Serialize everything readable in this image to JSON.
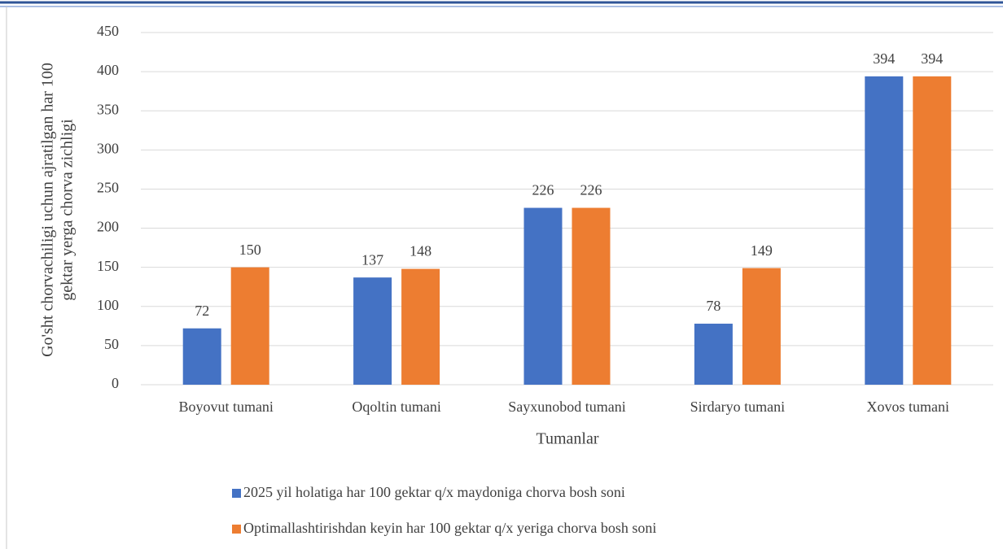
{
  "chart_data": {
    "type": "bar",
    "categories": [
      "Boyovut tumani",
      "Oqoltin tumani",
      "Sayxunobod tumani",
      "Sirdaryo tumani",
      "Xovos tumani"
    ],
    "series": [
      {
        "name": "2025 yil holatiga har 100 gektar q/x maydoniga chorva bosh soni",
        "color": "#4472c4",
        "values": [
          72,
          137,
          226,
          78,
          394
        ]
      },
      {
        "name": "Optimallashtirishdan keyin har 100 gektar q/x yeriga chorva bosh soni",
        "color": "#ed7d31",
        "values": [
          150,
          148,
          226,
          149,
          394
        ]
      }
    ],
    "xlabel": "Tumanlar",
    "ylabel": [
      "Go'sht chorvachiligi uchun ajratilgan har 100",
      "gektar yerga chorva zichligi"
    ],
    "ylim": [
      0,
      450
    ],
    "yticks": [
      0,
      50,
      100,
      150,
      200,
      250,
      300,
      350,
      400,
      450
    ],
    "grid": true,
    "legend": "bottom"
  }
}
